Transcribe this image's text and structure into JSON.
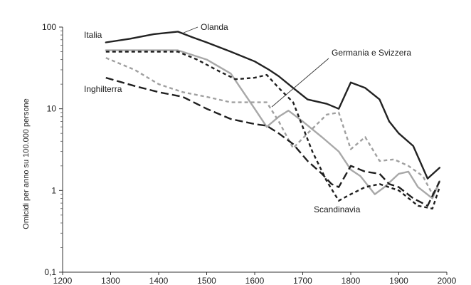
{
  "chart_data": {
    "type": "line",
    "ylabel": "Omicidi per anno su 100.000 persone",
    "xlabel": "",
    "xlim": [
      1200,
      2000
    ],
    "ylim": [
      0.1,
      100
    ],
    "y_scale": "log",
    "grid": false,
    "legend": "none",
    "x_ticks": [
      "1200",
      "1300",
      "1400",
      "1500",
      "1600",
      "1700",
      "1800",
      "1900",
      "2000"
    ],
    "y_ticks": [
      "0,1",
      "1",
      "10",
      "100"
    ],
    "series": [
      {
        "name": "Italia",
        "color": "#222222",
        "dash": "solid",
        "points": [
          [
            1290,
            65
          ],
          [
            1340,
            72
          ],
          [
            1390,
            82
          ],
          [
            1440,
            88
          ],
          [
            1470,
            75
          ],
          [
            1500,
            65
          ],
          [
            1550,
            50
          ],
          [
            1600,
            38
          ],
          [
            1630,
            30
          ],
          [
            1650,
            25
          ],
          [
            1680,
            18
          ],
          [
            1710,
            13
          ],
          [
            1750,
            11.5
          ],
          [
            1775,
            10
          ],
          [
            1800,
            21
          ],
          [
            1830,
            18
          ],
          [
            1860,
            13
          ],
          [
            1880,
            7
          ],
          [
            1900,
            5
          ],
          [
            1930,
            3.5
          ],
          [
            1960,
            1.4
          ],
          [
            1985,
            1.9
          ]
        ]
      },
      {
        "name": "Olanda",
        "color": "#a8a8a8",
        "dash": "solid",
        "points": [
          [
            1290,
            52
          ],
          [
            1440,
            52
          ],
          [
            1500,
            40
          ],
          [
            1550,
            27
          ],
          [
            1600,
            10
          ],
          [
            1625,
            6
          ],
          [
            1650,
            8
          ],
          [
            1670,
            9.5
          ],
          [
            1700,
            7
          ],
          [
            1740,
            4.5
          ],
          [
            1775,
            3
          ],
          [
            1800,
            1.8
          ],
          [
            1820,
            1.5
          ],
          [
            1850,
            0.9
          ],
          [
            1870,
            1.1
          ],
          [
            1900,
            1.6
          ],
          [
            1920,
            1.7
          ],
          [
            1940,
            1.1
          ],
          [
            1970,
            0.8
          ],
          [
            1985,
            1.3
          ]
        ]
      },
      {
        "name": "Germania e Svizzera",
        "color": "#a0a0a0",
        "dash": "short",
        "points": [
          [
            1290,
            42
          ],
          [
            1350,
            30
          ],
          [
            1400,
            20
          ],
          [
            1450,
            16
          ],
          [
            1500,
            14
          ],
          [
            1550,
            12
          ],
          [
            1600,
            12
          ],
          [
            1625,
            12
          ],
          [
            1650,
            7
          ],
          [
            1680,
            3.3
          ],
          [
            1710,
            5
          ],
          [
            1750,
            8.5
          ],
          [
            1775,
            9
          ],
          [
            1800,
            3.2
          ],
          [
            1830,
            4.5
          ],
          [
            1860,
            2.3
          ],
          [
            1890,
            2.4
          ],
          [
            1920,
            2
          ],
          [
            1950,
            1.5
          ],
          [
            1970,
            0.9
          ],
          [
            1985,
            1.2
          ]
        ]
      },
      {
        "name": "Scandinavia",
        "color": "#1f1f1f",
        "dash": "short",
        "points": [
          [
            1290,
            50
          ],
          [
            1440,
            50
          ],
          [
            1480,
            40
          ],
          [
            1520,
            30
          ],
          [
            1560,
            23
          ],
          [
            1600,
            24
          ],
          [
            1625,
            26
          ],
          [
            1650,
            18
          ],
          [
            1680,
            12
          ],
          [
            1700,
            6
          ],
          [
            1720,
            3
          ],
          [
            1750,
            1.3
          ],
          [
            1775,
            0.75
          ],
          [
            1800,
            0.9
          ],
          [
            1830,
            1.1
          ],
          [
            1860,
            1.2
          ],
          [
            1900,
            1
          ],
          [
            1940,
            0.65
          ],
          [
            1970,
            0.6
          ],
          [
            1985,
            1.1
          ]
        ]
      },
      {
        "name": "Inghilterra",
        "color": "#1f1f1f",
        "dash": "long",
        "points": [
          [
            1290,
            24
          ],
          [
            1350,
            19
          ],
          [
            1400,
            16
          ],
          [
            1450,
            14
          ],
          [
            1500,
            10
          ],
          [
            1550,
            7.5
          ],
          [
            1600,
            6.5
          ],
          [
            1625,
            6.2
          ],
          [
            1650,
            5
          ],
          [
            1680,
            3.7
          ],
          [
            1710,
            2.3
          ],
          [
            1740,
            1.6
          ],
          [
            1760,
            1.2
          ],
          [
            1775,
            1.1
          ],
          [
            1800,
            2
          ],
          [
            1830,
            1.7
          ],
          [
            1860,
            1.6
          ],
          [
            1880,
            1.2
          ],
          [
            1900,
            1.1
          ],
          [
            1930,
            0.8
          ],
          [
            1960,
            0.65
          ],
          [
            1985,
            1.3
          ]
        ]
      }
    ],
    "annotations": [
      {
        "text": "Italia"
      },
      {
        "text": "Olanda"
      },
      {
        "text": "Germania e Svizzera"
      },
      {
        "text": "Inghilterra"
      },
      {
        "text": "Scandinavia"
      }
    ]
  }
}
